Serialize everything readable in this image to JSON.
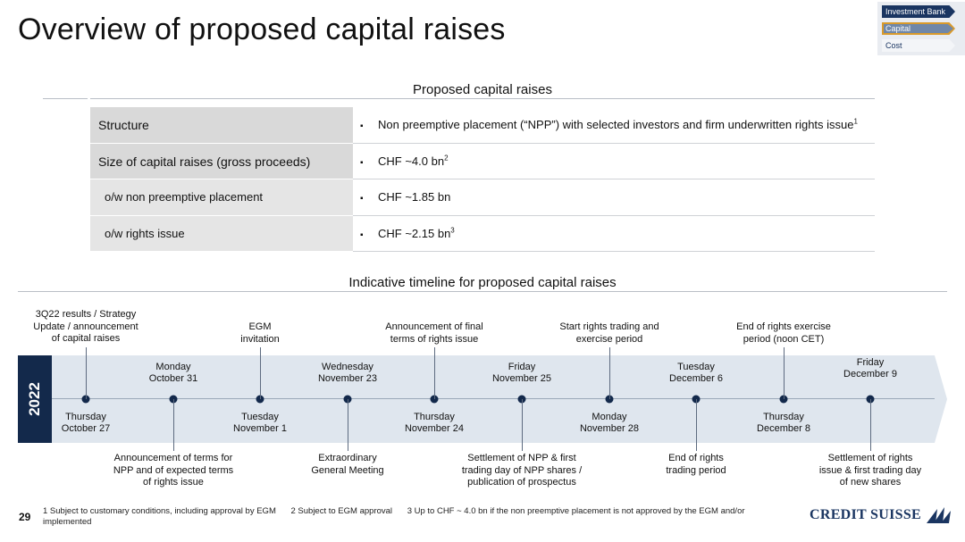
{
  "title": "Overview of proposed capital raises",
  "nav": {
    "items": [
      "Investment Bank",
      "Capital",
      "Cost"
    ],
    "active": "Capital",
    "colors": {
      "primary": "#1a3561",
      "active_border": "#d99a2b"
    }
  },
  "capital_table": {
    "heading": "Proposed capital raises",
    "rows": [
      {
        "label": "Structure",
        "value": "Non preemptive placement (“NPP”) with selected investors and firm underwritten rights issue",
        "sup": "1"
      },
      {
        "label": "Size of capital raises (gross proceeds)",
        "value": "CHF ~4.0 bn",
        "sup": "2"
      },
      {
        "label": "o/w non preemptive placement",
        "value": "CHF ~1.85 bn",
        "sup": ""
      },
      {
        "label": "o/w rights issue",
        "value": "CHF ~2.15 bn",
        "sup": "3"
      }
    ],
    "bullet": "▪"
  },
  "timeline": {
    "heading": "Indicative timeline for proposed capital raises",
    "year": "2022",
    "dates": [
      {
        "day": "Thursday",
        "date": "October 27"
      },
      {
        "day": "Monday",
        "date": "October 31"
      },
      {
        "day": "Tuesday",
        "date": "November 1"
      },
      {
        "day": "Wednesday",
        "date": "November 23"
      },
      {
        "day": "Thursday",
        "date": "November 24"
      },
      {
        "day": "Friday",
        "date": "November 25"
      },
      {
        "day": "Monday",
        "date": "November 28"
      },
      {
        "day": "Tuesday",
        "date": "December 6"
      },
      {
        "day": "Thursday",
        "date": "December 8"
      },
      {
        "day": "Friday",
        "date": "December 9"
      }
    ],
    "events_above": [
      "3Q22 results / Strategy\nUpdate / announcement\nof capital raises",
      "EGM\ninvitation",
      "Announcement of final\nterms of rights issue",
      "Start rights trading and\nexercise period",
      "End of rights exercise\nperiod (noon CET)"
    ],
    "events_below": [
      "Announcement of terms for\nNPP and of expected terms\nof rights issue",
      "Extraordinary\nGeneral Meeting",
      "Settlement of NPP & first\ntrading day of NPP shares /\npublication of prospectus",
      "End of rights\ntrading period",
      "Settlement of rights\nissue & first trading day\nof new shares"
    ]
  },
  "footer": {
    "page_number": "29",
    "footnotes": [
      "1 Subject to customary conditions, including approval by EGM",
      "2 Subject to EGM approval",
      "3 Up to CHF ~ 4.0 bn if the non preemptive placement is not approved by the EGM and/or implemented"
    ],
    "logo_text": "CREDIT SUISSE"
  }
}
